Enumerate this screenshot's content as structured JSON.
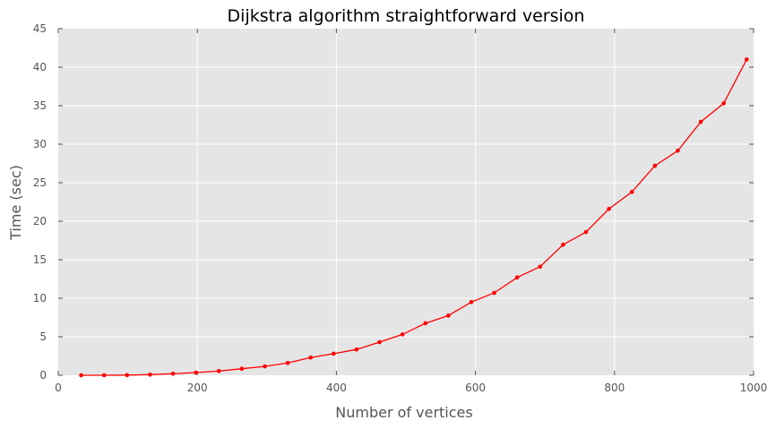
{
  "chart_data": {
    "type": "line",
    "title": "Dijkstra algorithm straightforward version",
    "xlabel": "Number of vertices",
    "ylabel": "Time (sec)",
    "xlim": [
      0,
      1000
    ],
    "ylim": [
      0,
      45
    ],
    "xticks": [
      "0",
      "200",
      "400",
      "600",
      "800",
      "1000"
    ],
    "yticks": [
      "0",
      "5",
      "10",
      "15",
      "20",
      "25",
      "30",
      "35",
      "40",
      "45"
    ],
    "grid": true,
    "colors": {
      "background": "#e5e5e5",
      "grid": "#ffffff",
      "line": "#ff0000"
    },
    "series": [
      {
        "x": [
          33,
          66,
          99,
          132,
          165,
          198,
          231,
          264,
          297,
          330,
          363,
          396,
          429,
          462,
          495,
          528,
          561,
          594,
          627,
          660,
          693,
          726,
          759,
          792,
          825,
          858,
          891,
          924,
          957,
          990
        ],
        "y": [
          0.0,
          0.0,
          0.02,
          0.08,
          0.2,
          0.35,
          0.55,
          0.85,
          1.15,
          1.6,
          2.3,
          2.8,
          3.35,
          4.3,
          5.3,
          6.75,
          7.75,
          9.5,
          10.7,
          12.7,
          14.1,
          16.95,
          18.6,
          21.6,
          23.8,
          27.2,
          29.15,
          32.9,
          35.3,
          41.0
        ]
      }
    ]
  }
}
